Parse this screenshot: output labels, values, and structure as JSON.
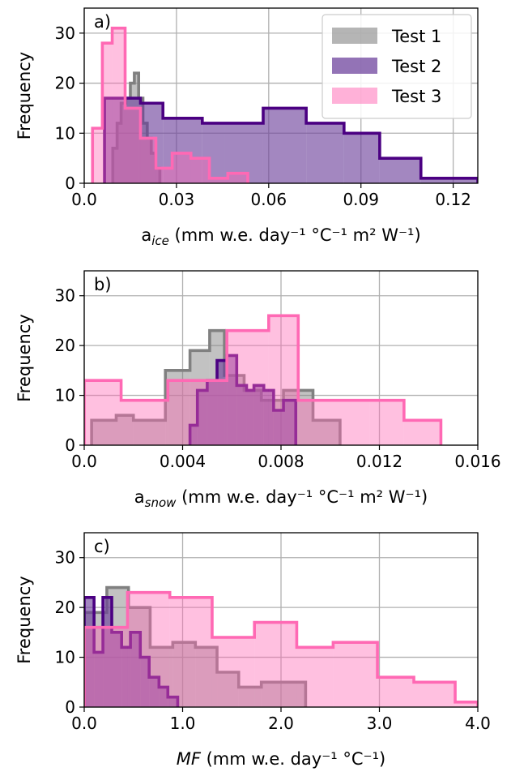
{
  "chart_data": [
    {
      "type": "histogram",
      "panel_label": "a)",
      "xlabel": {
        "base": "a",
        "sub": "ice",
        "unit": "(mm w.e. day⁻¹ °C⁻¹ m² W⁻¹)"
      },
      "ylabel": "Frequency",
      "xlim": [
        0,
        0.128
      ],
      "ylim": [
        0,
        35
      ],
      "xticks": [
        0.0,
        0.03,
        0.06,
        0.09,
        0.12
      ],
      "xtick_labels": [
        "0.0",
        "0.03",
        "0.06",
        "0.09",
        "0.12"
      ],
      "yticks": [
        0,
        10,
        20,
        30
      ],
      "ytick_labels": [
        "0",
        "10",
        "20",
        "30"
      ],
      "grid": true,
      "legend": {
        "position": "top-right",
        "entries": [
          "Test 1",
          "Test 2",
          "Test 3"
        ]
      },
      "series": [
        {
          "name": "Test 1",
          "edges": [
            0.0093,
            0.0107,
            0.012,
            0.0135,
            0.015,
            0.0163,
            0.0177,
            0.0191,
            0.0205,
            0.0218,
            0.0232,
            0.0246
          ],
          "counts": [
            7,
            12,
            16,
            17,
            20,
            22,
            17,
            12,
            9,
            6,
            3
          ]
        },
        {
          "name": "Test 2",
          "edges": [
            0.0066,
            0.0183,
            0.0256,
            0.0384,
            0.0457,
            0.0582,
            0.0722,
            0.0845,
            0.0961,
            0.1095,
            0.128
          ],
          "counts": [
            17,
            16,
            13,
            12,
            12,
            15,
            12,
            10,
            5,
            1
          ]
        },
        {
          "name": "Test 3",
          "edges": [
            0.0027,
            0.0059,
            0.0091,
            0.0133,
            0.0183,
            0.0233,
            0.0286,
            0.0347,
            0.0407,
            0.0467,
            0.0532
          ],
          "counts": [
            11,
            28,
            31,
            15,
            9,
            3,
            6,
            5,
            1,
            2
          ]
        }
      ]
    },
    {
      "type": "histogram",
      "panel_label": "b)",
      "xlabel": {
        "base": "a",
        "sub": "snow",
        "unit": "(mm w.e. day⁻¹ °C⁻¹ m² W⁻¹)"
      },
      "ylabel": "Frequency",
      "xlim": [
        0,
        0.016
      ],
      "ylim": [
        0,
        35
      ],
      "xticks": [
        0.0,
        0.004,
        0.008,
        0.012,
        0.016
      ],
      "xtick_labels": [
        "0.0",
        "0.004",
        "0.008",
        "0.012",
        "0.016"
      ],
      "yticks": [
        0,
        10,
        20,
        30
      ],
      "ytick_labels": [
        "0",
        "10",
        "20",
        "30"
      ],
      "grid": true,
      "series": [
        {
          "name": "Test 1",
          "edges": [
            0.0003,
            0.0013,
            0.002,
            0.0033,
            0.0043,
            0.0051,
            0.0057,
            0.0065,
            0.0072,
            0.0081,
            0.0093,
            0.0104
          ],
          "counts": [
            5,
            6,
            5,
            15,
            19,
            23,
            14,
            11,
            9,
            11,
            5
          ]
        },
        {
          "name": "Test 2",
          "edges": [
            0.0043,
            0.0046,
            0.005,
            0.0054,
            0.0058,
            0.0062,
            0.0066,
            0.0069,
            0.0073,
            0.0077,
            0.0081,
            0.0086
          ],
          "counts": [
            4,
            11,
            13,
            17,
            18,
            12,
            11,
            12,
            11,
            7,
            9
          ]
        },
        {
          "name": "Test 3",
          "edges": [
            0.0,
            0.0015,
            0.0034,
            0.0058,
            0.0075,
            0.0087,
            0.0116,
            0.013,
            0.0145
          ],
          "counts": [
            13,
            9,
            13,
            23,
            26,
            9,
            9,
            5
          ]
        }
      ]
    },
    {
      "type": "histogram",
      "panel_label": "c)",
      "xlabel": {
        "base": "MF",
        "sub": "",
        "unit": "(mm w.e. day⁻¹ °C⁻¹)"
      },
      "ylabel": "Frequency",
      "xlim": [
        0,
        4.0
      ],
      "ylim": [
        0,
        35
      ],
      "xticks": [
        0.0,
        1.0,
        2.0,
        3.0,
        4.0
      ],
      "xtick_labels": [
        "0.0",
        "1.0",
        "2.0",
        "3.0",
        "4.0"
      ],
      "yticks": [
        0,
        10,
        20,
        30
      ],
      "ytick_labels": [
        "0",
        "10",
        "20",
        "30"
      ],
      "grid": true,
      "series": [
        {
          "name": "Test 1",
          "edges": [
            0.0,
            0.23,
            0.45,
            0.67,
            0.9,
            1.13,
            1.35,
            1.57,
            1.8,
            2.02,
            2.25
          ],
          "counts": [
            19,
            24,
            20,
            12,
            13,
            12,
            7,
            4,
            5,
            5
          ]
        },
        {
          "name": "Test 2",
          "edges": [
            0.0,
            0.1,
            0.19,
            0.28,
            0.38,
            0.47,
            0.57,
            0.66,
            0.76,
            0.85,
            0.95
          ],
          "counts": [
            22,
            11,
            22,
            15,
            12,
            15,
            10,
            6,
            4,
            2
          ]
        },
        {
          "name": "Test 3",
          "edges": [
            0.0,
            0.44,
            0.87,
            1.3,
            1.73,
            2.16,
            2.53,
            2.98,
            3.35,
            3.77,
            4.0
          ],
          "counts": [
            16,
            23,
            22,
            14,
            17,
            12,
            13,
            6,
            5,
            1
          ]
        }
      ]
    }
  ],
  "colors": {
    "Test 1": {
      "edge": "#808080",
      "fill": "#808080",
      "fill_opacity": 0.48
    },
    "Test 2": {
      "edge": "#4b0082",
      "fill": "#6a3d9a",
      "fill_opacity": 0.62
    },
    "Test 3": {
      "edge": "#ff69b4",
      "fill": "#ff69b4",
      "fill_opacity": 0.42
    },
    "grid": "#b0b0b0",
    "axes": "#000000"
  }
}
